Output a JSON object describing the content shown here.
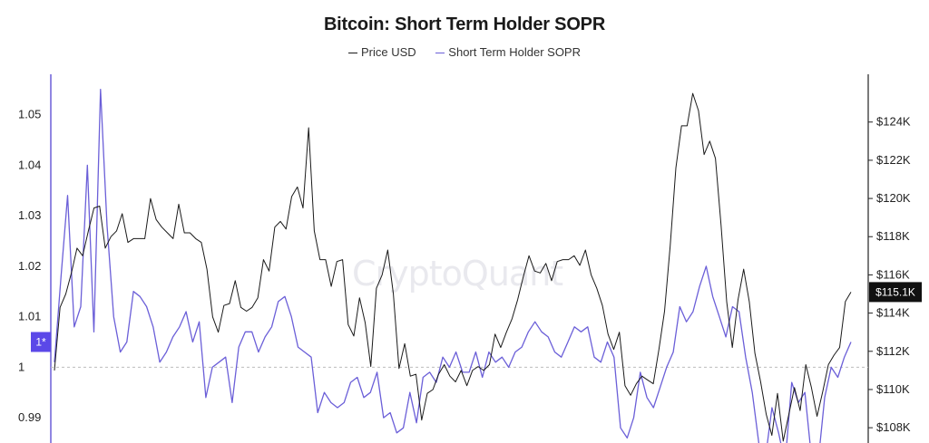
{
  "chart_data": {
    "type": "line",
    "title": "Bitcoin: Short Term Holder SOPR",
    "watermark": "CryptoQuant",
    "legend": {
      "placement": "top-center"
    },
    "grid": false,
    "y_left": {
      "label": "",
      "range": [
        0.985,
        1.058
      ],
      "ticks": [
        "1.05",
        "1.04",
        "1.03",
        "1.02",
        "1.01",
        "1",
        "0.99"
      ],
      "tick_values": [
        1.05,
        1.04,
        1.03,
        1.02,
        1.01,
        1.0,
        0.99
      ]
    },
    "y_right": {
      "label": "",
      "range": [
        107200,
        126500
      ],
      "ticks": [
        "$124K",
        "$122K",
        "$120K",
        "$118K",
        "$116K",
        "$114K",
        "$112K",
        "$110K",
        "$108K"
      ],
      "tick_values": [
        124000,
        122000,
        120000,
        118000,
        116000,
        114000,
        112000,
        110000,
        108000
      ]
    },
    "reference_line": {
      "value": 1,
      "axis": "left"
    },
    "current_marker_left": {
      "text": "1*",
      "value": 1.005,
      "color": "#5b48e8"
    },
    "current_marker_right": {
      "text": "$115.1K",
      "value": 115100
    },
    "series": [
      {
        "name": "Price USD",
        "axis": "right",
        "color": "#1a1a1a",
        "values": [
          111000,
          114300,
          115000,
          116100,
          117400,
          117000,
          118300,
          119500,
          119600,
          117400,
          118000,
          118300,
          119200,
          117700,
          117900,
          117900,
          117900,
          120000,
          118900,
          118500,
          118200,
          117900,
          119700,
          118200,
          118200,
          117900,
          117700,
          116300,
          113800,
          113000,
          114400,
          114500,
          115700,
          114300,
          114100,
          114300,
          114800,
          116800,
          116200,
          118500,
          118800,
          118400,
          120100,
          120600,
          119500,
          123700,
          118300,
          116800,
          116800,
          115400,
          116700,
          116800,
          113400,
          112800,
          114800,
          113500,
          111200,
          115300,
          116000,
          117300,
          115000,
          111100,
          112400,
          110700,
          110800,
          108400,
          109800,
          110000,
          110800,
          111300,
          110700,
          110400,
          111000,
          110200,
          111000,
          111200,
          111000,
          111300,
          112900,
          112200,
          113000,
          113700,
          114700,
          115900,
          117000,
          116200,
          116100,
          116600,
          115700,
          116700,
          116800,
          116800,
          117000,
          116500,
          117300,
          116000,
          115300,
          114400,
          112900,
          112100,
          113000,
          110200,
          109700,
          110300,
          110700,
          110500,
          110300,
          112100,
          114100,
          117500,
          121600,
          123800,
          123800,
          125500,
          124600,
          122300,
          123000,
          122100,
          118600,
          114600,
          112200,
          114700,
          116300,
          114600,
          111900,
          110400,
          108700,
          107600,
          109800,
          107300,
          108700,
          110100,
          108900,
          111300,
          110100,
          108600,
          109900,
          111300,
          111800,
          112200,
          114600,
          115100
        ],
        "label_value": "$115.1K"
      },
      {
        "name": "Short Term Holder SOPR",
        "axis": "left",
        "color": "#6b5fd8",
        "values": [
          1.001,
          1.018,
          1.034,
          1.008,
          1.012,
          1.04,
          1.007,
          1.055,
          1.028,
          1.01,
          1.003,
          1.005,
          1.015,
          1.014,
          1.012,
          1.008,
          1.001,
          1.003,
          1.006,
          1.008,
          1.011,
          1.005,
          1.009,
          0.994,
          1.0,
          1.001,
          1.002,
          0.993,
          1.004,
          1.007,
          1.007,
          1.003,
          1.006,
          1.008,
          1.013,
          1.014,
          1.01,
          1.004,
          1.003,
          1.002,
          0.991,
          0.995,
          0.993,
          0.992,
          0.993,
          0.997,
          0.998,
          0.994,
          0.995,
          0.999,
          0.99,
          0.991,
          0.987,
          0.988,
          0.995,
          0.989,
          0.998,
          0.999,
          0.997,
          1.002,
          1.0,
          1.003,
          0.999,
          0.999,
          1.003,
          0.998,
          1.003,
          1.001,
          1.002,
          1.0,
          1.003,
          1.004,
          1.007,
          1.009,
          1.007,
          1.006,
          1.003,
          1.002,
          1.005,
          1.008,
          1.007,
          1.008,
          1.002,
          1.001,
          1.005,
          1.002,
          0.988,
          0.986,
          0.99,
          0.999,
          0.994,
          0.992,
          0.996,
          1.0,
          1.003,
          1.012,
          1.009,
          1.011,
          1.016,
          1.02,
          1.014,
          1.01,
          1.006,
          1.012,
          1.011,
          1.002,
          0.995,
          0.985,
          0.982,
          0.992,
          0.987,
          0.981,
          0.997,
          0.993,
          0.995,
          0.982,
          0.981,
          0.994,
          1.0,
          0.998,
          1.002,
          1.005
        ],
        "label_value": "1"
      }
    ]
  }
}
